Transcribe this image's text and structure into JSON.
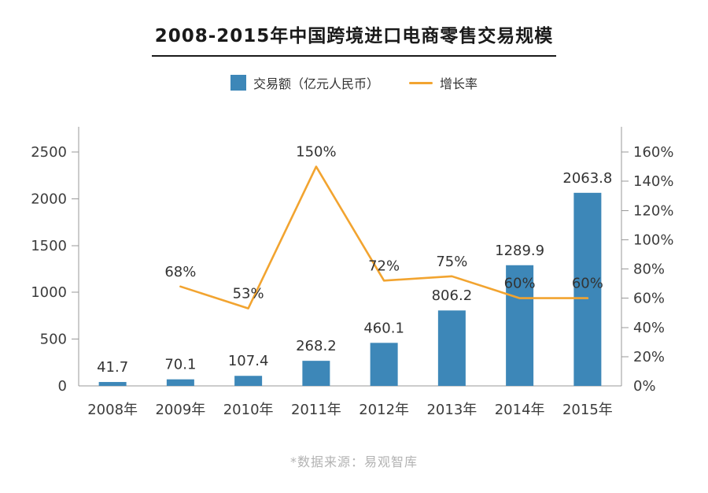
{
  "header": {
    "title": "2008-2015年中国跨境进口电商零售交易规模"
  },
  "legend": {
    "bars_label": "交易额（亿元人民币）",
    "line_label": "增长率"
  },
  "footer": {
    "source": "*数据来源：易观智库"
  },
  "colors": {
    "bar": "#3d87b8",
    "line": "#f2a430",
    "axis": "#999999",
    "tick_text": "#3c3c3c",
    "data_label": "#333333",
    "title": "#1a1a1a",
    "source_text": "#b3b3b3"
  },
  "chart_data": {
    "type": "bar",
    "subtype": "bar-line-combo",
    "title": "2008-2015年中国跨境进口电商零售交易规模",
    "categories": [
      "2008年",
      "2009年",
      "2010年",
      "2011年",
      "2012年",
      "2013年",
      "2014年",
      "2015年"
    ],
    "series": [
      {
        "name": "交易额（亿元人民币）",
        "type": "bar",
        "axis": "left",
        "values": [
          41.7,
          70.1,
          107.4,
          268.2,
          460.1,
          806.2,
          1289.9,
          2063.8
        ],
        "labels": [
          "41.7",
          "70.1",
          "107.4",
          "268.2",
          "460.1",
          "806.2",
          "1289.9",
          "2063.8"
        ]
      },
      {
        "name": "增长率",
        "type": "line",
        "axis": "right",
        "values": [
          null,
          68,
          53,
          150,
          72,
          75,
          60,
          60
        ],
        "labels": [
          "",
          "68%",
          "53%",
          "150%",
          "72%",
          "75%",
          "60%",
          "60%"
        ]
      }
    ],
    "left_axis": {
      "min": 0,
      "max": 2500,
      "ticks": [
        0,
        500,
        1000,
        1500,
        2000,
        2500
      ],
      "tick_labels": [
        "0",
        "500",
        "1000",
        "1500",
        "2000",
        "2500"
      ]
    },
    "right_axis": {
      "min": 0,
      "max": 160,
      "ticks": [
        0,
        20,
        40,
        60,
        80,
        100,
        120,
        140,
        160
      ],
      "tick_labels": [
        "0%",
        "20%",
        "40%",
        "60%",
        "80%",
        "100%",
        "120%",
        "140%",
        "160%"
      ]
    },
    "grid": false,
    "legend_position": "top"
  }
}
